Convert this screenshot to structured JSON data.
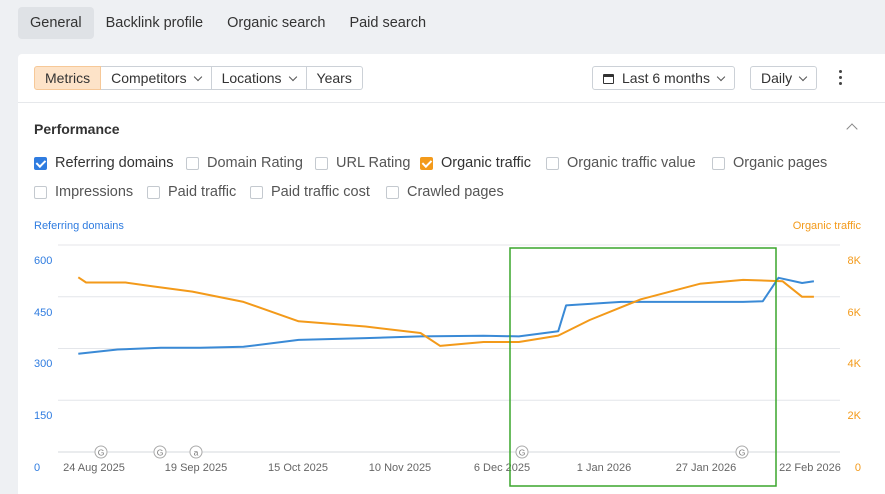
{
  "tabs": [
    "General",
    "Backlink profile",
    "Organic search",
    "Paid search"
  ],
  "toolbar": {
    "segments": [
      "Metrics",
      "Competitors",
      "Locations",
      "Years"
    ],
    "range": "Last 6 months",
    "interval": "Daily"
  },
  "section_title": "Performance",
  "checkboxes": [
    {
      "label": "Referring domains",
      "checked": true,
      "color": "#2f7ce0"
    },
    {
      "label": "Domain Rating",
      "checked": false
    },
    {
      "label": "URL Rating",
      "checked": false
    },
    {
      "label": "Organic traffic",
      "checked": true,
      "color": "#f39a1a"
    },
    {
      "label": "Organic traffic value",
      "checked": false
    },
    {
      "label": "Organic pages",
      "checked": false
    },
    {
      "label": "Impressions",
      "checked": false
    },
    {
      "label": "Paid traffic",
      "checked": false
    },
    {
      "label": "Paid traffic cost",
      "checked": false
    },
    {
      "label": "Crawled pages",
      "checked": false
    }
  ],
  "chart_data": {
    "type": "line",
    "left_axis_title": "Referring domains",
    "right_axis_title": "Organic traffic",
    "left_ticks": [
      "600",
      "450",
      "300",
      "150",
      "0"
    ],
    "right_ticks": [
      "8K",
      "6K",
      "4K",
      "2K",
      "0"
    ],
    "ylim_left": [
      0,
      600
    ],
    "ylim_right": [
      0,
      8000
    ],
    "x_labels": [
      "24 Aug 2025",
      "19 Sep 2025",
      "15 Oct 2025",
      "10 Nov 2025",
      "6 Dec 2025",
      "1 Jan 2026",
      "27 Jan 2026",
      "22 Feb 2026"
    ],
    "grid": true,
    "annotation_markers": [
      "G",
      "G",
      "a",
      "G",
      "G"
    ],
    "colors": {
      "referring_domains": "#3a8ad6",
      "organic_traffic": "#f39a1a",
      "highlight_box": "#3aa62c"
    },
    "series": [
      {
        "name": "Referring domains",
        "axis": "left",
        "x": [
          "2025-08-20",
          "2025-08-30",
          "2025-09-10",
          "2025-09-20",
          "2025-10-01",
          "2025-10-15",
          "2025-11-01",
          "2025-11-15",
          "2025-12-01",
          "2025-12-10",
          "2025-12-20",
          "2025-12-22",
          "2026-01-05",
          "2026-01-20",
          "2026-02-05",
          "2026-02-10",
          "2026-02-14",
          "2026-02-20",
          "2026-02-23"
        ],
        "values": [
          285,
          297,
          302,
          302,
          305,
          325,
          330,
          335,
          337,
          335,
          350,
          425,
          435,
          435,
          435,
          437,
          505,
          490,
          495
        ]
      },
      {
        "name": "Organic traffic",
        "axis": "right",
        "x": [
          "2025-08-20",
          "2025-08-22",
          "2025-09-01",
          "2025-09-08",
          "2025-09-18",
          "2025-10-01",
          "2025-10-15",
          "2025-11-01",
          "2025-11-15",
          "2025-11-20",
          "2025-12-01",
          "2025-12-10",
          "2025-12-20",
          "2025-12-28",
          "2026-01-10",
          "2026-01-25",
          "2026-02-05",
          "2026-02-15",
          "2026-02-20",
          "2026-02-23"
        ],
        "values": [
          6750,
          6550,
          6550,
          6400,
          6200,
          5800,
          5050,
          4850,
          4600,
          4100,
          4250,
          4250,
          4500,
          5100,
          5900,
          6500,
          6650,
          6600,
          6000,
          6000
        ]
      }
    ]
  }
}
